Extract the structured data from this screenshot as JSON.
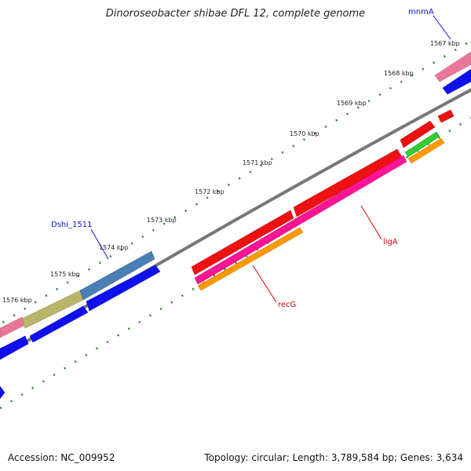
{
  "title": "Dinoroseobacter shibae DFL 12, complete genome",
  "footer": {
    "accession": "Accession: NC_009952",
    "stats": "Topology: circular; Length: 3,789,584 bp; Genes: 3,634"
  },
  "scale": {
    "tick_labels": [
      "1567 kbp",
      "1568 kbp",
      "1569 kbp",
      "1570 kbp",
      "1571 kbp",
      "1572 kbp",
      "1573 kbp",
      "1574 kbp",
      "1575 kbp",
      "1576 kbp"
    ]
  },
  "genes": [
    {
      "name": "mnmA",
      "label_color": "#1010cc"
    },
    {
      "name": "Dshi_1511",
      "label_color": "#1010cc"
    },
    {
      "name": "ligA",
      "label_color": "#dd0000"
    },
    {
      "name": "recG",
      "label_color": "#dd0000"
    }
  ],
  "colors": {
    "backbone": "#888888",
    "tick": "#2e7d32",
    "cds_forward_red": "#ee1111",
    "cds_forward_pink": "#e8789a",
    "cds_forward_olive": "#b8b46a",
    "cds_forward_steelblue": "#4a7fb5",
    "cds_reverse_blue": "#1010ee",
    "feature_magenta": "#ff1493",
    "feature_orange": "#ff9900",
    "feature_green": "#33cc33"
  }
}
